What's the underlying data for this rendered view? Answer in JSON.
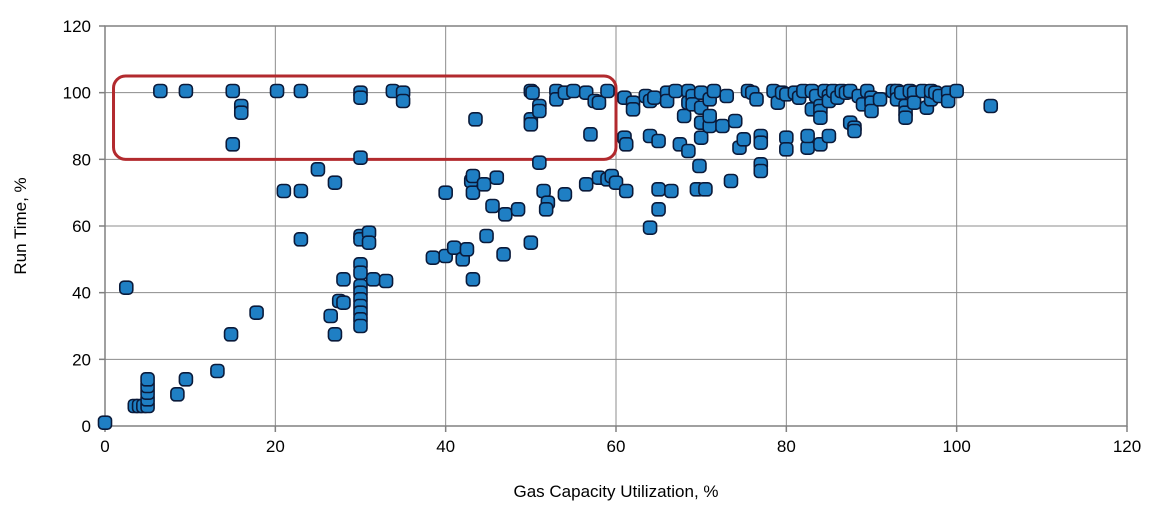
{
  "chart_data": {
    "type": "scatter",
    "title": "",
    "xlabel": "Gas Capacity Utilization, %",
    "ylabel": "Run Time, %",
    "xlim": [
      0,
      120
    ],
    "ylim": [
      0,
      120
    ],
    "x_ticks": [
      "0",
      "20",
      "40",
      "60",
      "80",
      "100",
      "120"
    ],
    "y_ticks": [
      "0",
      "20",
      "40",
      "60",
      "80",
      "100",
      "120"
    ],
    "grid": true,
    "legend": "none",
    "marker_color": "#1f7fc4",
    "marker_edge_color": "#0a1a3a",
    "highlight_box": {
      "x_range": [
        1,
        60
      ],
      "y_range": [
        80,
        105
      ],
      "color": "#b22a2e"
    },
    "points": [
      [
        0,
        1
      ],
      [
        2.5,
        41.5
      ],
      [
        3.5,
        6
      ],
      [
        4,
        6
      ],
      [
        4.5,
        6
      ],
      [
        5,
        6
      ],
      [
        5,
        8
      ],
      [
        5,
        10
      ],
      [
        5,
        12
      ],
      [
        5,
        14
      ],
      [
        8.5,
        9.5
      ],
      [
        9.5,
        14
      ],
      [
        13.2,
        16.5
      ],
      [
        14.8,
        27.5
      ],
      [
        17.8,
        34
      ],
      [
        6.5,
        100.5
      ],
      [
        9.5,
        100.5
      ],
      [
        15,
        100.5
      ],
      [
        15,
        84.5
      ],
      [
        16,
        96
      ],
      [
        16,
        94
      ],
      [
        20.2,
        100.5
      ],
      [
        21,
        70.5
      ],
      [
        23,
        100.5
      ],
      [
        23,
        70.5
      ],
      [
        23,
        56
      ],
      [
        25,
        77
      ],
      [
        27,
        73
      ],
      [
        26.5,
        33
      ],
      [
        27,
        27.5
      ],
      [
        27.5,
        37.5
      ],
      [
        28,
        37
      ],
      [
        28,
        44
      ],
      [
        30,
        100
      ],
      [
        30,
        98.5
      ],
      [
        30,
        80.5
      ],
      [
        30,
        57
      ],
      [
        30,
        56
      ],
      [
        30,
        48.5
      ],
      [
        30,
        46
      ],
      [
        30,
        42
      ],
      [
        30,
        40
      ],
      [
        30,
        38
      ],
      [
        30,
        36
      ],
      [
        30,
        34
      ],
      [
        30,
        32
      ],
      [
        30,
        30
      ],
      [
        31,
        58
      ],
      [
        31,
        55
      ],
      [
        31.5,
        44
      ],
      [
        33,
        43.5
      ],
      [
        33.8,
        100.5
      ],
      [
        35,
        100
      ],
      [
        35,
        97.5
      ],
      [
        38.5,
        50.5
      ],
      [
        40,
        70
      ],
      [
        40,
        51
      ],
      [
        41,
        53.5
      ],
      [
        42,
        50
      ],
      [
        42.5,
        53
      ],
      [
        43,
        73.5
      ],
      [
        43.2,
        75
      ],
      [
        43.2,
        70
      ],
      [
        43.2,
        44
      ],
      [
        43.5,
        92
      ],
      [
        44.5,
        72.5
      ],
      [
        44.8,
        57
      ],
      [
        45.5,
        66
      ],
      [
        46,
        74.5
      ],
      [
        46.8,
        51.5
      ],
      [
        47,
        63.5
      ],
      [
        48.5,
        65
      ],
      [
        50,
        100.5
      ],
      [
        50.2,
        100
      ],
      [
        50,
        92
      ],
      [
        50,
        90.5
      ],
      [
        50,
        55
      ],
      [
        51,
        79
      ],
      [
        51,
        96
      ],
      [
        51,
        94.5
      ],
      [
        51.5,
        70.5
      ],
      [
        52,
        67
      ],
      [
        51.8,
        65
      ],
      [
        53,
        100.5
      ],
      [
        53,
        98
      ],
      [
        54,
        100
      ],
      [
        54,
        69.5
      ],
      [
        55,
        100.5
      ],
      [
        56.5,
        100
      ],
      [
        56.5,
        72.5
      ],
      [
        57,
        87.5
      ],
      [
        57.5,
        97.5
      ],
      [
        58,
        97
      ],
      [
        58,
        74.5
      ],
      [
        59,
        100.5
      ],
      [
        59,
        74
      ],
      [
        59.5,
        75
      ],
      [
        60,
        73
      ],
      [
        61,
        98.5
      ],
      [
        61,
        86.5
      ],
      [
        61.2,
        84.5
      ],
      [
        61.2,
        70.5
      ],
      [
        62,
        97
      ],
      [
        62,
        95
      ],
      [
        63.5,
        99
      ],
      [
        64,
        97.5
      ],
      [
        64,
        87
      ],
      [
        64,
        59.5
      ],
      [
        64.5,
        98.5
      ],
      [
        65,
        85.5
      ],
      [
        65,
        71
      ],
      [
        65,
        65
      ],
      [
        66,
        100
      ],
      [
        66,
        97.5
      ],
      [
        66.5,
        70.5
      ],
      [
        67,
        100.5
      ],
      [
        67.5,
        84.5
      ],
      [
        68,
        93
      ],
      [
        68.5,
        100.5
      ],
      [
        68.5,
        97
      ],
      [
        68.5,
        82.5
      ],
      [
        69,
        99
      ],
      [
        69,
        96.5
      ],
      [
        69.5,
        71
      ],
      [
        69.8,
        78
      ],
      [
        70,
        100
      ],
      [
        70,
        95.5
      ],
      [
        70,
        91
      ],
      [
        70,
        86.5
      ],
      [
        70.5,
        71
      ],
      [
        71,
        98
      ],
      [
        71,
        90
      ],
      [
        71,
        93
      ],
      [
        71.5,
        100.5
      ],
      [
        72.5,
        90
      ],
      [
        73,
        99
      ],
      [
        73.5,
        73.5
      ],
      [
        74,
        91.5
      ],
      [
        74.5,
        83.5
      ],
      [
        75,
        86
      ],
      [
        75.5,
        100.5
      ],
      [
        76,
        100
      ],
      [
        76.5,
        98
      ],
      [
        77,
        87
      ],
      [
        77,
        85
      ],
      [
        77,
        78.5
      ],
      [
        77,
        76.5
      ],
      [
        78.5,
        100.5
      ],
      [
        79,
        97
      ],
      [
        79.5,
        100
      ],
      [
        80,
        86.5
      ],
      [
        80,
        99.5
      ],
      [
        80,
        83
      ],
      [
        81,
        100
      ],
      [
        81.5,
        98.5
      ],
      [
        82,
        100.5
      ],
      [
        82.5,
        83.5
      ],
      [
        82.5,
        87
      ],
      [
        83,
        95
      ],
      [
        83,
        100.5
      ],
      [
        83.5,
        99
      ],
      [
        84,
        96
      ],
      [
        84,
        94.5
      ],
      [
        84,
        92.5
      ],
      [
        84,
        84.5
      ],
      [
        84.5,
        100.5
      ],
      [
        85,
        99
      ],
      [
        85,
        97.5
      ],
      [
        85,
        87
      ],
      [
        85.5,
        100.5
      ],
      [
        86,
        98.5
      ],
      [
        86.5,
        100.5
      ],
      [
        87,
        100
      ],
      [
        87.5,
        91
      ],
      [
        87.5,
        100.5
      ],
      [
        88,
        89.5
      ],
      [
        88,
        88.5
      ],
      [
        88.5,
        99
      ],
      [
        89,
        96.5
      ],
      [
        89.5,
        100.5
      ],
      [
        90,
        98.5
      ],
      [
        90,
        97
      ],
      [
        90,
        94.5
      ],
      [
        91,
        98
      ],
      [
        92.5,
        100.5
      ],
      [
        93,
        100.5
      ],
      [
        93,
        98
      ],
      [
        93.5,
        100
      ],
      [
        94,
        96
      ],
      [
        94,
        94
      ],
      [
        94,
        92.5
      ],
      [
        94.5,
        100.5
      ],
      [
        95,
        100
      ],
      [
        95,
        97
      ],
      [
        96,
        100.5
      ],
      [
        96.5,
        95.5
      ],
      [
        97,
        98
      ],
      [
        97,
        100.5
      ],
      [
        97.5,
        100
      ],
      [
        98,
        99
      ],
      [
        99,
        100
      ],
      [
        99,
        97.5
      ],
      [
        100,
        100.5
      ],
      [
        104,
        96
      ]
    ]
  }
}
